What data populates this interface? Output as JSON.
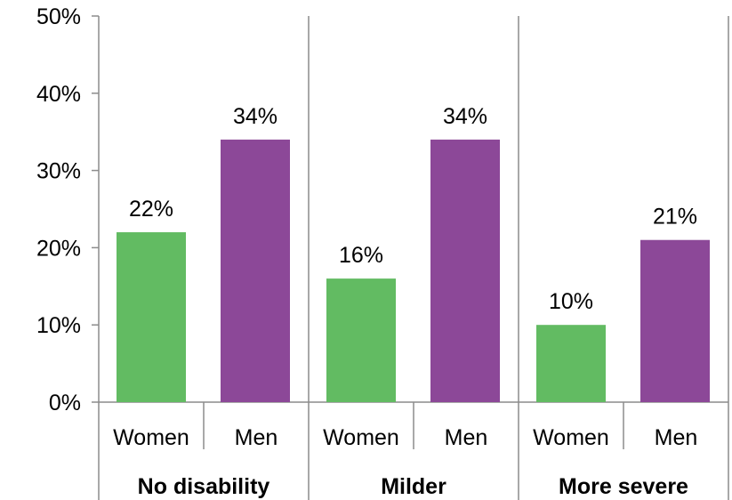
{
  "chart_data": {
    "type": "bar",
    "groups": [
      {
        "label": "No disability",
        "bars": [
          {
            "category": "Women",
            "value": 22,
            "label": "22%"
          },
          {
            "category": "Men",
            "value": 34,
            "label": "34%"
          }
        ]
      },
      {
        "label": "Milder",
        "bars": [
          {
            "category": "Women",
            "value": 16,
            "label": "16%"
          },
          {
            "category": "Men",
            "value": 34,
            "label": "34%"
          }
        ]
      },
      {
        "label": "More severe",
        "bars": [
          {
            "category": "Women",
            "value": 10,
            "label": "10%"
          },
          {
            "category": "Men",
            "value": 21,
            "label": "21%"
          }
        ]
      }
    ],
    "yticks": [
      {
        "value": 0,
        "label": "0%"
      },
      {
        "value": 10,
        "label": "10%"
      },
      {
        "value": 20,
        "label": "20%"
      },
      {
        "value": 30,
        "label": "30%"
      },
      {
        "value": 40,
        "label": "40%"
      },
      {
        "value": 50,
        "label": "50%"
      }
    ],
    "ylim": [
      0,
      50
    ],
    "colors": {
      "Women": "#62bb62",
      "Men": "#8c4898"
    },
    "title": "",
    "xlabel": "",
    "ylabel": "",
    "grid": false,
    "legend": "none"
  }
}
